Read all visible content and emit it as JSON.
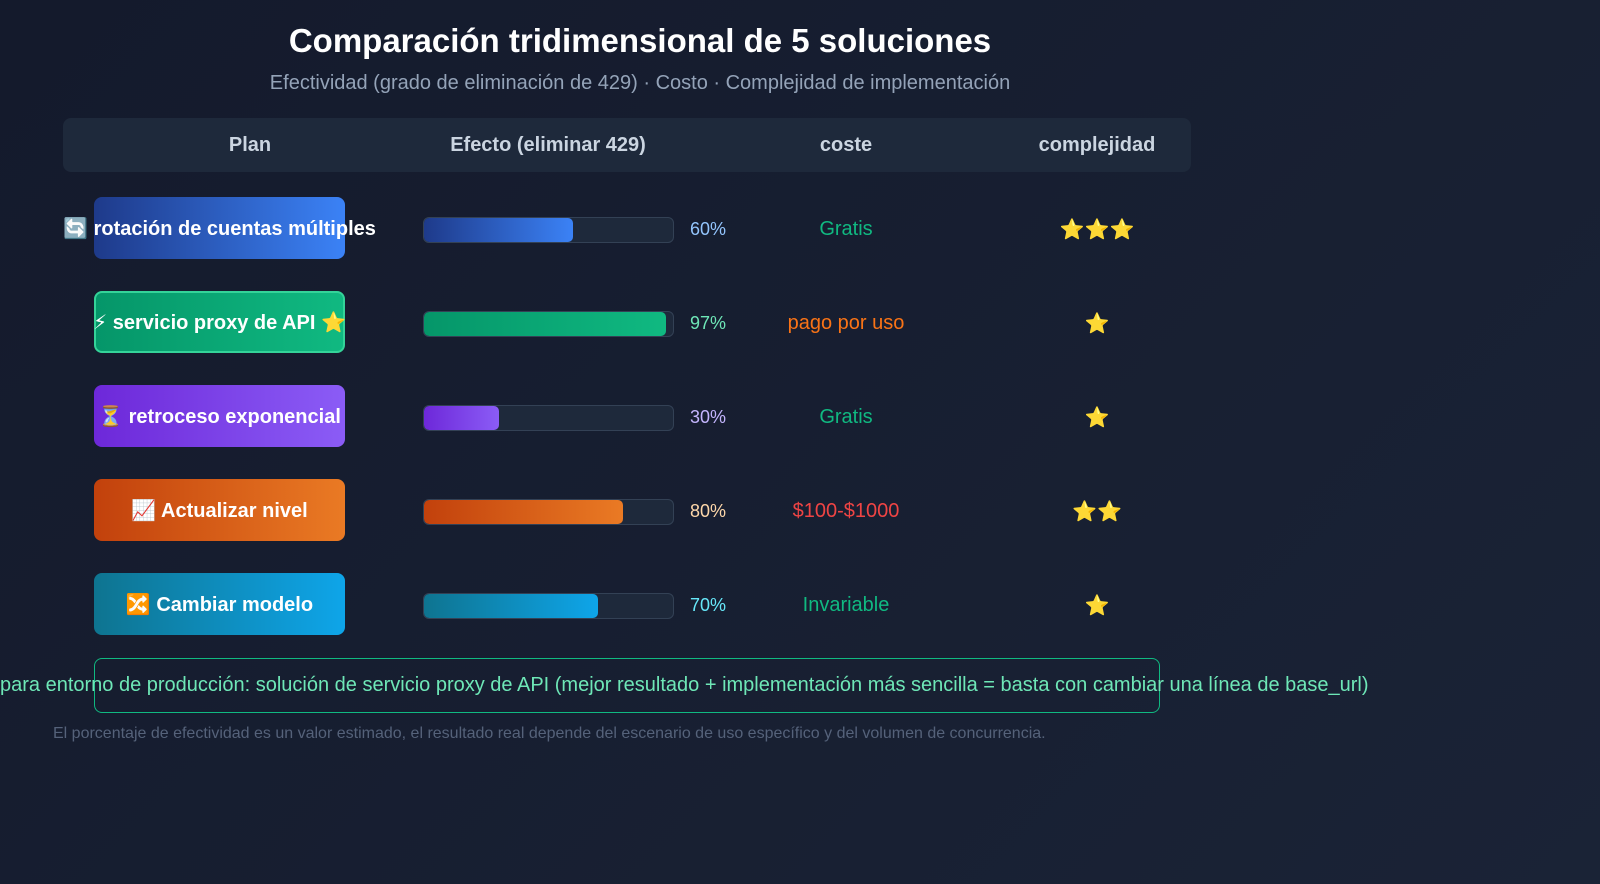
{
  "header": {
    "title": "Comparación tridimensional de 5 soluciones",
    "subtitle": "Efectividad (grado de eliminación de 429) · Costo · Complejidad de implementación"
  },
  "table": {
    "columns": [
      "Plan",
      "Efecto (eliminar 429)",
      "coste",
      "complejidad"
    ],
    "effect_range": [
      0,
      100
    ],
    "rows": [
      {
        "plan": "🔄 rotación de cuentas múltiples",
        "effect": 60,
        "effect_label": "60%",
        "cost": "Gratis",
        "complexity": "⭐⭐⭐",
        "colors": [
          "#1e3a8a",
          "#3b82f6"
        ],
        "label_color": "#93c5fd",
        "cost_color": "#10b981"
      },
      {
        "plan": "⚡ servicio proxy de API ⭐",
        "effect": 97,
        "effect_label": "97%",
        "cost": "pago por uso",
        "complexity": "⭐",
        "colors": [
          "#059669",
          "#10b981"
        ],
        "label_color": "#6ee7b7",
        "cost_color": "#f97316"
      },
      {
        "plan": "⏳ retroceso exponencial",
        "effect": 30,
        "effect_label": "30%",
        "cost": "Gratis",
        "complexity": "⭐",
        "colors": [
          "#6d28d9",
          "#8b5cf6"
        ],
        "label_color": "#c4b5fd",
        "cost_color": "#10b981"
      },
      {
        "plan": "📈 Actualizar nivel",
        "effect": 80,
        "effect_label": "80%",
        "cost": "$100-$1000",
        "complexity": "⭐⭐",
        "colors": [
          "#c2410c",
          "#ea7a24"
        ],
        "label_color": "#fed7aa",
        "cost_color": "#ef4444"
      },
      {
        "plan": "🔀 Cambiar modelo",
        "effect": 70,
        "effect_label": "70%",
        "cost": "Invariable",
        "complexity": "⭐",
        "colors": [
          "#0e7490",
          "#0ea5e9"
        ],
        "label_color": "#67e8f9",
        "cost_color": "#10b981"
      }
    ]
  },
  "recommendation": "para entorno de producción: solución de servicio proxy de API (mejor resultado + implementación más sencilla = basta con cambiar una línea de base_url)",
  "footnote": "El porcentaje de efectividad es un valor estimado, el resultado real depende del escenario de uso específico y del volumen de concurrencia."
}
